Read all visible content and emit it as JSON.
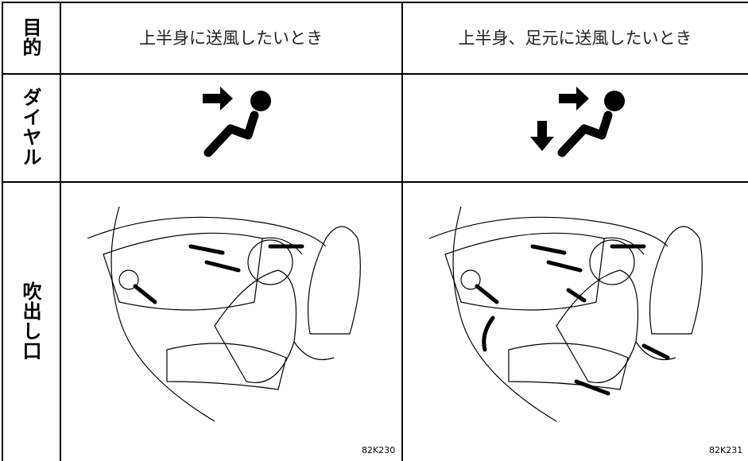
{
  "purpose": {
    "label": "目的",
    "columns": [
      "上半身に送風したいとき",
      "上半身、足元に送風したいとき"
    ]
  },
  "dial": {
    "label": "ダイヤル"
  },
  "outlet": {
    "label": "吹出し口",
    "figure_codes": [
      "82K230",
      "82K231"
    ]
  }
}
